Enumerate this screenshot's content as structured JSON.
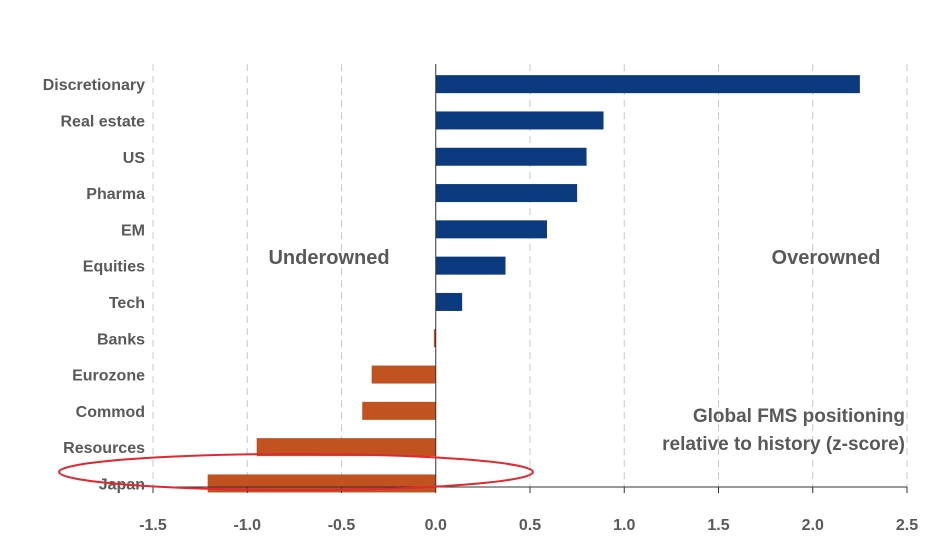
{
  "chart_data": {
    "type": "bar",
    "orientation": "horizontal",
    "title": "",
    "xlabel": "",
    "ylabel": "",
    "categories": [
      "Discretionary",
      "Real estate",
      "US",
      "Pharma",
      "EM",
      "Equities",
      "Tech",
      "Banks",
      "Eurozone",
      "Commod",
      "Resources",
      "Japan"
    ],
    "values": [
      2.25,
      0.89,
      0.8,
      0.75,
      0.59,
      0.37,
      0.14,
      -0.01,
      -0.34,
      -0.39,
      -0.95,
      -1.21
    ],
    "xlim": [
      -1.5,
      2.5
    ],
    "xticks": [
      "-1.5",
      "-1.0",
      "-0.5",
      "0.0",
      "0.5",
      "1.0",
      "1.5",
      "2.0",
      "2.5"
    ],
    "xtick_values": [
      -1.5,
      -1.0,
      -0.5,
      0.0,
      0.5,
      1.0,
      1.5,
      2.0,
      2.5
    ],
    "grid": "vertical dashed",
    "colors": {
      "positive": "#0b3a7e",
      "negative": "#c0531f",
      "highlight": "#e0282e",
      "grid": "#c8c8c8",
      "text": "#595959"
    },
    "annotations": {
      "left": "Underowned",
      "right": "Overowned",
      "note_line1": "Global FMS positioning",
      "note_line2": "relative to history (z-score)"
    },
    "highlighted_category": "Japan"
  }
}
